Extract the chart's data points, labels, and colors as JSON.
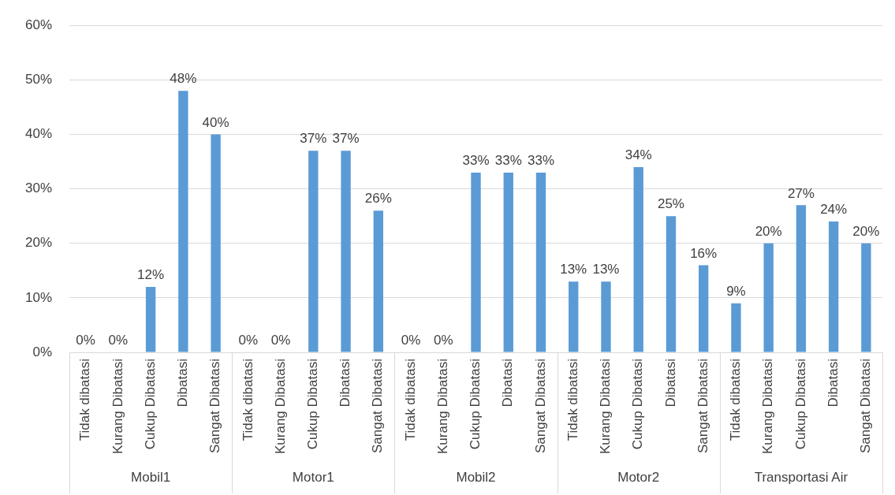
{
  "chart_data": {
    "type": "bar",
    "categories": [
      "Tidak dibatasi",
      "Kurang Dibatasi",
      "Cukup Dibatasi",
      "Dibatasi",
      "Sangat Dibatasi",
      "Tidak dibatasi",
      "Kurang Dibatasi",
      "Cukup Dibatasi",
      "Dibatasi",
      "Sangat Dibatasi",
      "Tidak dibatasi",
      "Kurang Dibatasi",
      "Cukup Dibatasi",
      "Dibatasi",
      "Sangat Dibatasi",
      "Tidak dibatasi",
      "Kurang Dibatasi",
      "Cukup Dibatasi",
      "Dibatasi",
      "Sangat Dibatasi",
      "Tidak dibatasi",
      "Kurang Dibatasi",
      "Cukup Dibatasi",
      "Dibatasi",
      "Sangat Dibatasi"
    ],
    "values": [
      0,
      0,
      12,
      48,
      40,
      0,
      0,
      37,
      37,
      26,
      0,
      0,
      33,
      33,
      33,
      13,
      13,
      34,
      25,
      16,
      9,
      20,
      27,
      24,
      20
    ],
    "color": "#5b9bd5",
    "annotations": [
      "Mobil1",
      "Motor1",
      "Mobil2",
      "Motor2",
      "Transportasi Air"
    ],
    "ylim": [
      0,
      60
    ],
    "yticks": [
      {
        "value": 0,
        "label": "0%"
      },
      {
        "value": 10,
        "label": "10%"
      },
      {
        "value": 20,
        "label": "20%"
      },
      {
        "value": 30,
        "label": "30%"
      },
      {
        "value": 40,
        "label": "40%"
      },
      {
        "value": 50,
        "label": "50%"
      },
      {
        "value": 60,
        "label": "60%"
      }
    ],
    "grid": "y",
    "value_labels": [
      "0%",
      "0%",
      "12%",
      "48%",
      "40%",
      "0%",
      "0%",
      "37%",
      "37%",
      "26%",
      "0%",
      "0%",
      "33%",
      "33%",
      "33%",
      "13%",
      "13%",
      "34%",
      "25%",
      "16%",
      "9%",
      "20%",
      "27%",
      "24%",
      "20%"
    ],
    "legend": false
  }
}
